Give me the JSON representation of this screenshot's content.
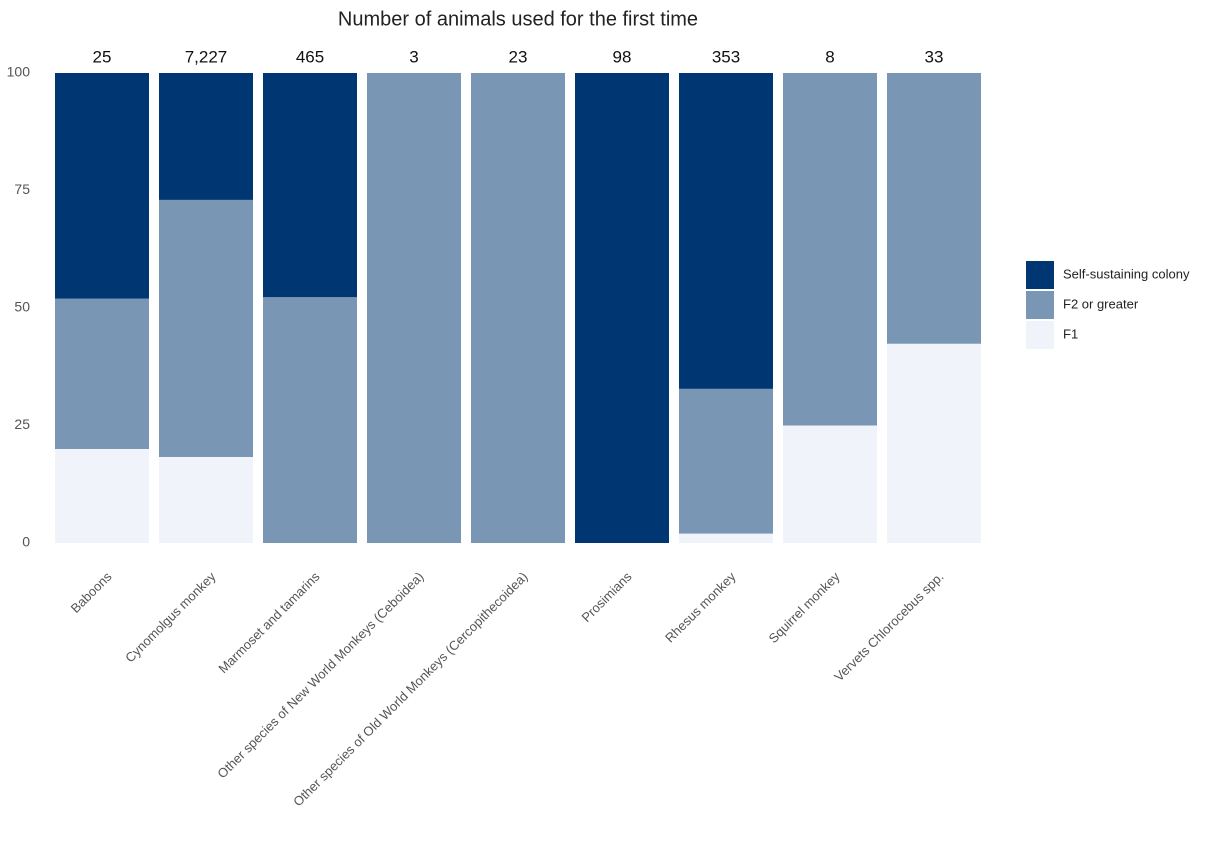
{
  "chart_data": {
    "type": "stacked_bar",
    "title": "Number of animals used for the first time",
    "categories": [
      "Baboons",
      "Cynomolgus monkey",
      "Marmoset and tamarins",
      "Other species of New World Monkeys (Ceboidea)",
      "Other species of Old World Monkeys (Cercopithecoidea)",
      "Prosimians",
      "Rhesus monkey",
      "Squirrel monkey",
      "Vervets Chlorocebus spp."
    ],
    "series": [
      {
        "name": "F1",
        "color": "#f0f3f9",
        "values": [
          20,
          18.3,
          0,
          0,
          0,
          0,
          2,
          25,
          42.4
        ]
      },
      {
        "name": "F2 or greater",
        "color": "#7a96b5",
        "values": [
          32,
          54.7,
          52.3,
          100,
          100,
          0,
          30.8,
          75,
          57.6
        ]
      },
      {
        "name": "Self-sustaining colony",
        "color": "#003671",
        "values": [
          48,
          27,
          47.7,
          0,
          0,
          100,
          67.2,
          0,
          0
        ]
      }
    ],
    "totals": {
      "values": [
        25,
        7227,
        465,
        3,
        23,
        98,
        353,
        8,
        33
      ],
      "value_labels": [
        "25",
        "7,227",
        "465",
        "3",
        "23",
        "98",
        "353",
        "8",
        "33"
      ]
    },
    "ylim": [
      0,
      100
    ],
    "yticks": [
      0,
      25,
      50,
      75,
      100
    ],
    "grid": false,
    "legend": "right"
  }
}
